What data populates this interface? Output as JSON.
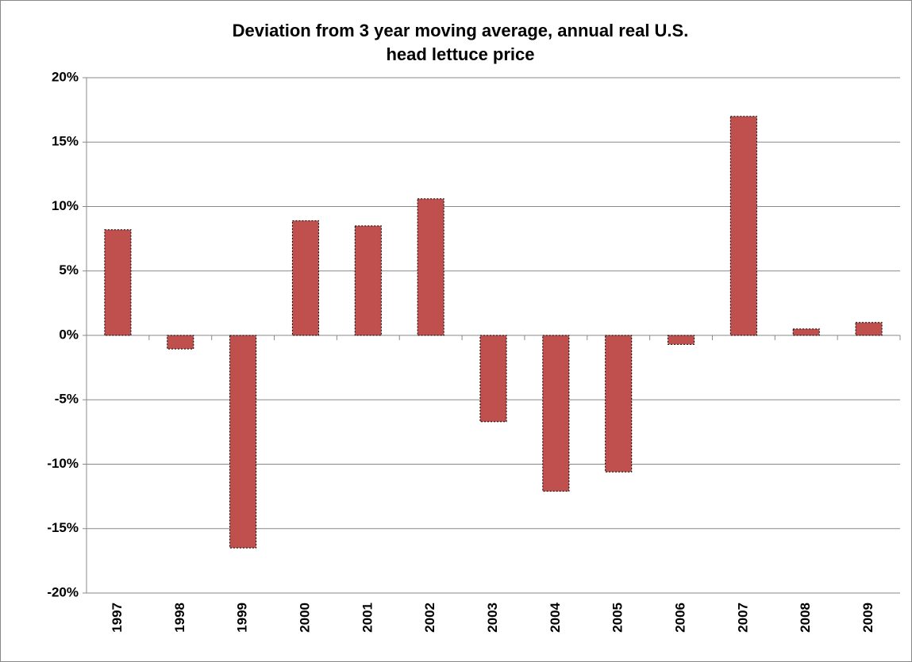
{
  "chart_data": {
    "type": "bar",
    "title": "Deviation from 3 year moving average, annual real U.S. head lettuce price",
    "categories": [
      "1997",
      "1998",
      "1999",
      "2000",
      "2001",
      "2002",
      "2003",
      "2004",
      "2005",
      "2006",
      "2007",
      "2008",
      "2009"
    ],
    "values": [
      8.2,
      -1.05,
      -16.5,
      8.9,
      8.5,
      10.6,
      -6.7,
      -12.1,
      -10.6,
      -0.7,
      17.0,
      0.5,
      1.0
    ],
    "color": "#c0504d",
    "ylim": [
      -20,
      20
    ],
    "yticks": [
      {
        "value": -20,
        "label": "-20%"
      },
      {
        "value": -15,
        "label": "-15%"
      },
      {
        "value": -10,
        "label": "-10%"
      },
      {
        "value": -5,
        "label": "-5%"
      },
      {
        "value": 0,
        "label": "0%"
      },
      {
        "value": 5,
        "label": "5%"
      },
      {
        "value": 10,
        "label": "10%"
      },
      {
        "value": 15,
        "label": "15%"
      },
      {
        "value": 20,
        "label": "20%"
      }
    ],
    "grid": true
  }
}
